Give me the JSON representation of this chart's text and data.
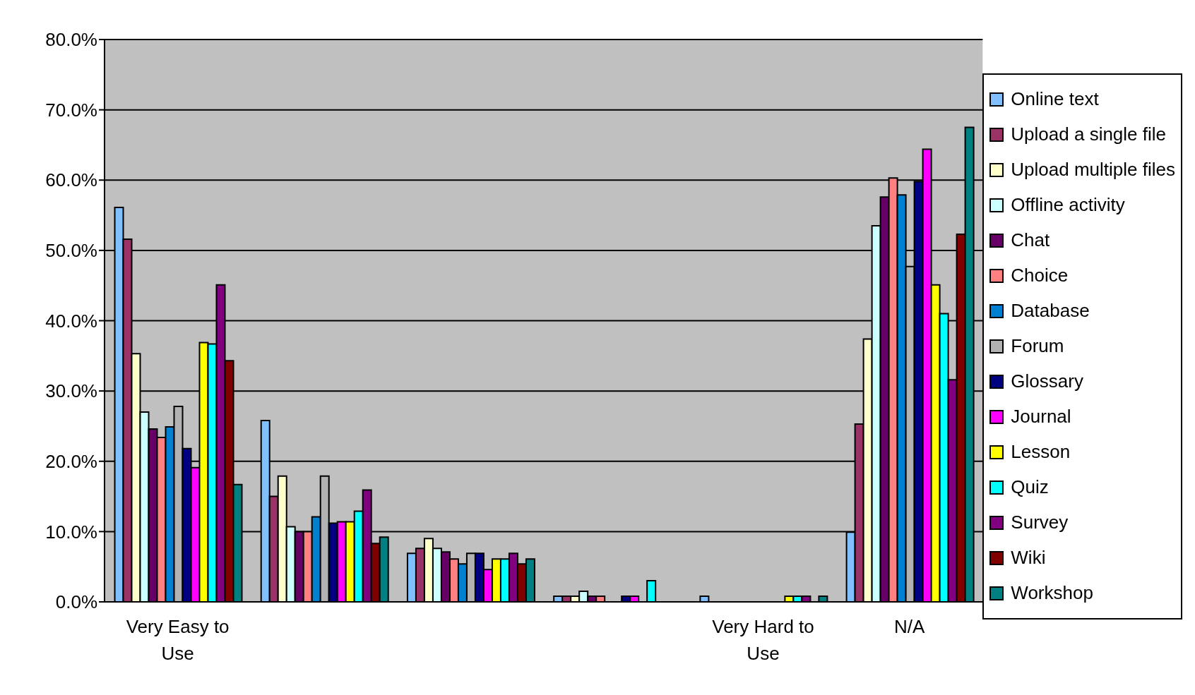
{
  "chart_data": {
    "type": "bar",
    "categories": [
      "Very Easy to Use",
      null,
      null,
      null,
      "Very Hard to Use",
      "N/A"
    ],
    "ylim": [
      0,
      80
    ],
    "yticks": [
      {
        "value": 0,
        "label": "0.0%"
      },
      {
        "value": 10,
        "label": "10.0%"
      },
      {
        "value": 20,
        "label": "20.0%"
      },
      {
        "value": 30,
        "label": "30.0%"
      },
      {
        "value": 40,
        "label": "40.0%"
      },
      {
        "value": 50,
        "label": "50.0%"
      },
      {
        "value": 60,
        "label": "60.0%"
      },
      {
        "value": 70,
        "label": "70.0%"
      },
      {
        "value": 80,
        "label": "80.0%"
      }
    ],
    "grid": "y",
    "legend": "right",
    "series": [
      {
        "name": "Online text",
        "color": "#80c0ff",
        "values": [
          56.1,
          25.8,
          6.9,
          0.8,
          0.8,
          9.9
        ]
      },
      {
        "name": "Upload a single file",
        "color": "#993366",
        "values": [
          51.6,
          15.0,
          7.6,
          0.8,
          0,
          25.3
        ]
      },
      {
        "name": "Upload multiple files",
        "color": "#ffffcc",
        "values": [
          35.3,
          17.9,
          9.0,
          0.8,
          0,
          37.4
        ]
      },
      {
        "name": "Offline activity",
        "color": "#ccffff",
        "values": [
          27.0,
          10.7,
          7.6,
          1.5,
          0,
          53.5
        ]
      },
      {
        "name": "Chat",
        "color": "#660066",
        "values": [
          24.6,
          10.0,
          7.1,
          0.8,
          0,
          57.6
        ]
      },
      {
        "name": "Choice",
        "color": "#ff8080",
        "values": [
          23.4,
          10.0,
          6.1,
          0.8,
          0,
          60.3
        ]
      },
      {
        "name": "Database",
        "color": "#0080d0",
        "values": [
          24.9,
          12.1,
          5.4,
          0,
          0,
          57.9
        ]
      },
      {
        "name": "Forum",
        "color": "#b2b2b2",
        "values": [
          27.8,
          17.9,
          6.9,
          0,
          0,
          47.7
        ]
      },
      {
        "name": "Glossary",
        "color": "#000080",
        "values": [
          21.8,
          11.2,
          6.9,
          0.8,
          0,
          59.8
        ]
      },
      {
        "name": "Journal",
        "color": "#ff00ff",
        "values": [
          19.1,
          11.4,
          4.6,
          0.8,
          0,
          64.4
        ]
      },
      {
        "name": "Lesson",
        "color": "#ffff00",
        "values": [
          36.9,
          11.4,
          6.1,
          0,
          0.8,
          45.1
        ]
      },
      {
        "name": "Quiz",
        "color": "#00ffff",
        "values": [
          36.7,
          12.9,
          6.1,
          3.0,
          0.8,
          41.0
        ]
      },
      {
        "name": "Survey",
        "color": "#800080",
        "values": [
          45.1,
          15.9,
          6.9,
          0,
          0.8,
          31.6
        ]
      },
      {
        "name": "Wiki",
        "color": "#800000",
        "values": [
          34.3,
          8.3,
          5.4,
          0,
          0,
          52.3
        ]
      },
      {
        "name": "Workshop",
        "color": "#008080",
        "values": [
          16.7,
          9.2,
          6.1,
          0,
          0.8,
          67.5
        ]
      }
    ]
  }
}
